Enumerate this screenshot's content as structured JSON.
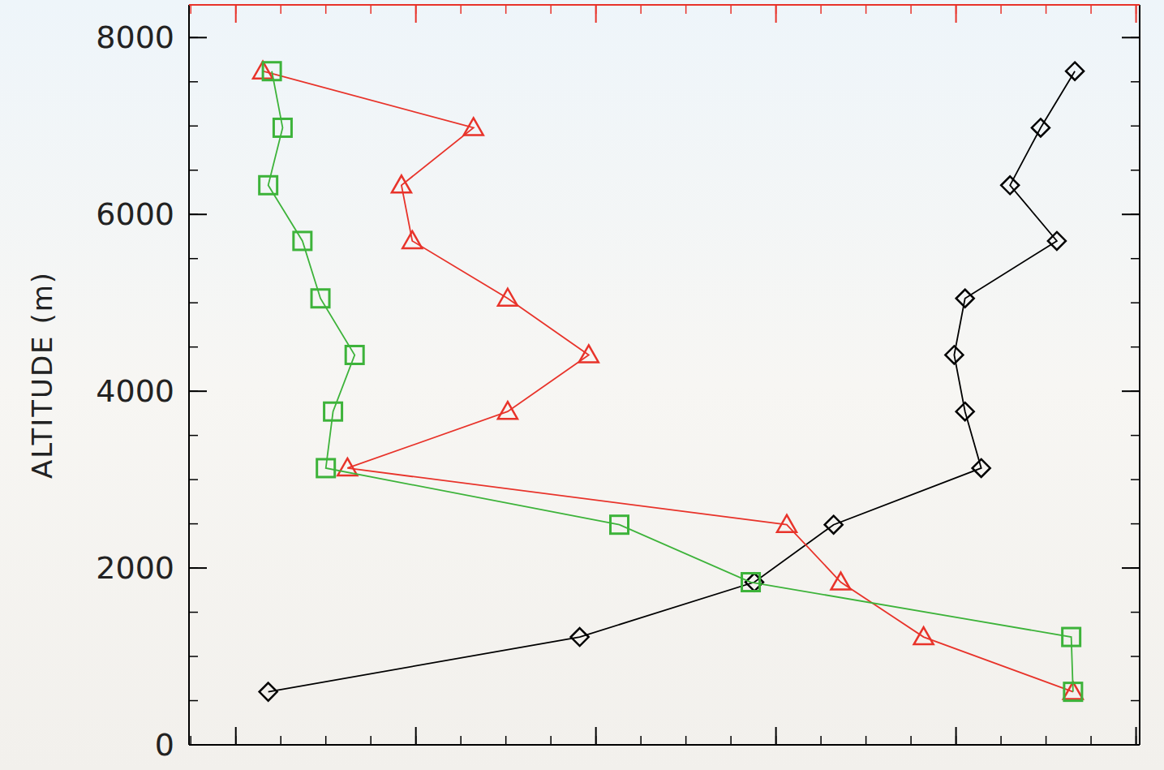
{
  "chart_data": {
    "type": "line",
    "y_label": "ALTITUDE (m)",
    "y": [
      600,
      1220,
      1840,
      2490,
      3130,
      3770,
      4410,
      5050,
      5700,
      6330,
      6980,
      7620
    ],
    "series": [
      {
        "color": "#000000",
        "marker": "diamond",
        "values": [
          0.18,
          1.91,
          2.88,
          3.32,
          4.14,
          4.05,
          3.99,
          4.05,
          4.56,
          4.3,
          4.47,
          4.66
        ]
      },
      {
        "color": "#e8332a",
        "marker": "triangle",
        "values": [
          4.65,
          3.82,
          3.36,
          3.06,
          0.62,
          1.51,
          1.96,
          1.51,
          0.98,
          0.92,
          1.32,
          0.15
        ]
      },
      {
        "color": "#3db33a",
        "marker": "square",
        "values": [
          4.65,
          4.64,
          2.86,
          2.13,
          0.5,
          0.54,
          0.66,
          0.47,
          0.37,
          0.18,
          0.26,
          0.2
        ]
      }
    ],
    "xlim": [
      -0.26,
      5.02
    ],
    "xticks": [
      0,
      1,
      2,
      3,
      4,
      5
    ],
    "ylim": [
      0,
      8370
    ],
    "yticks": [
      0,
      2000,
      4000,
      6000,
      8000
    ],
    "tick_labels": "y",
    "grid": false
  }
}
